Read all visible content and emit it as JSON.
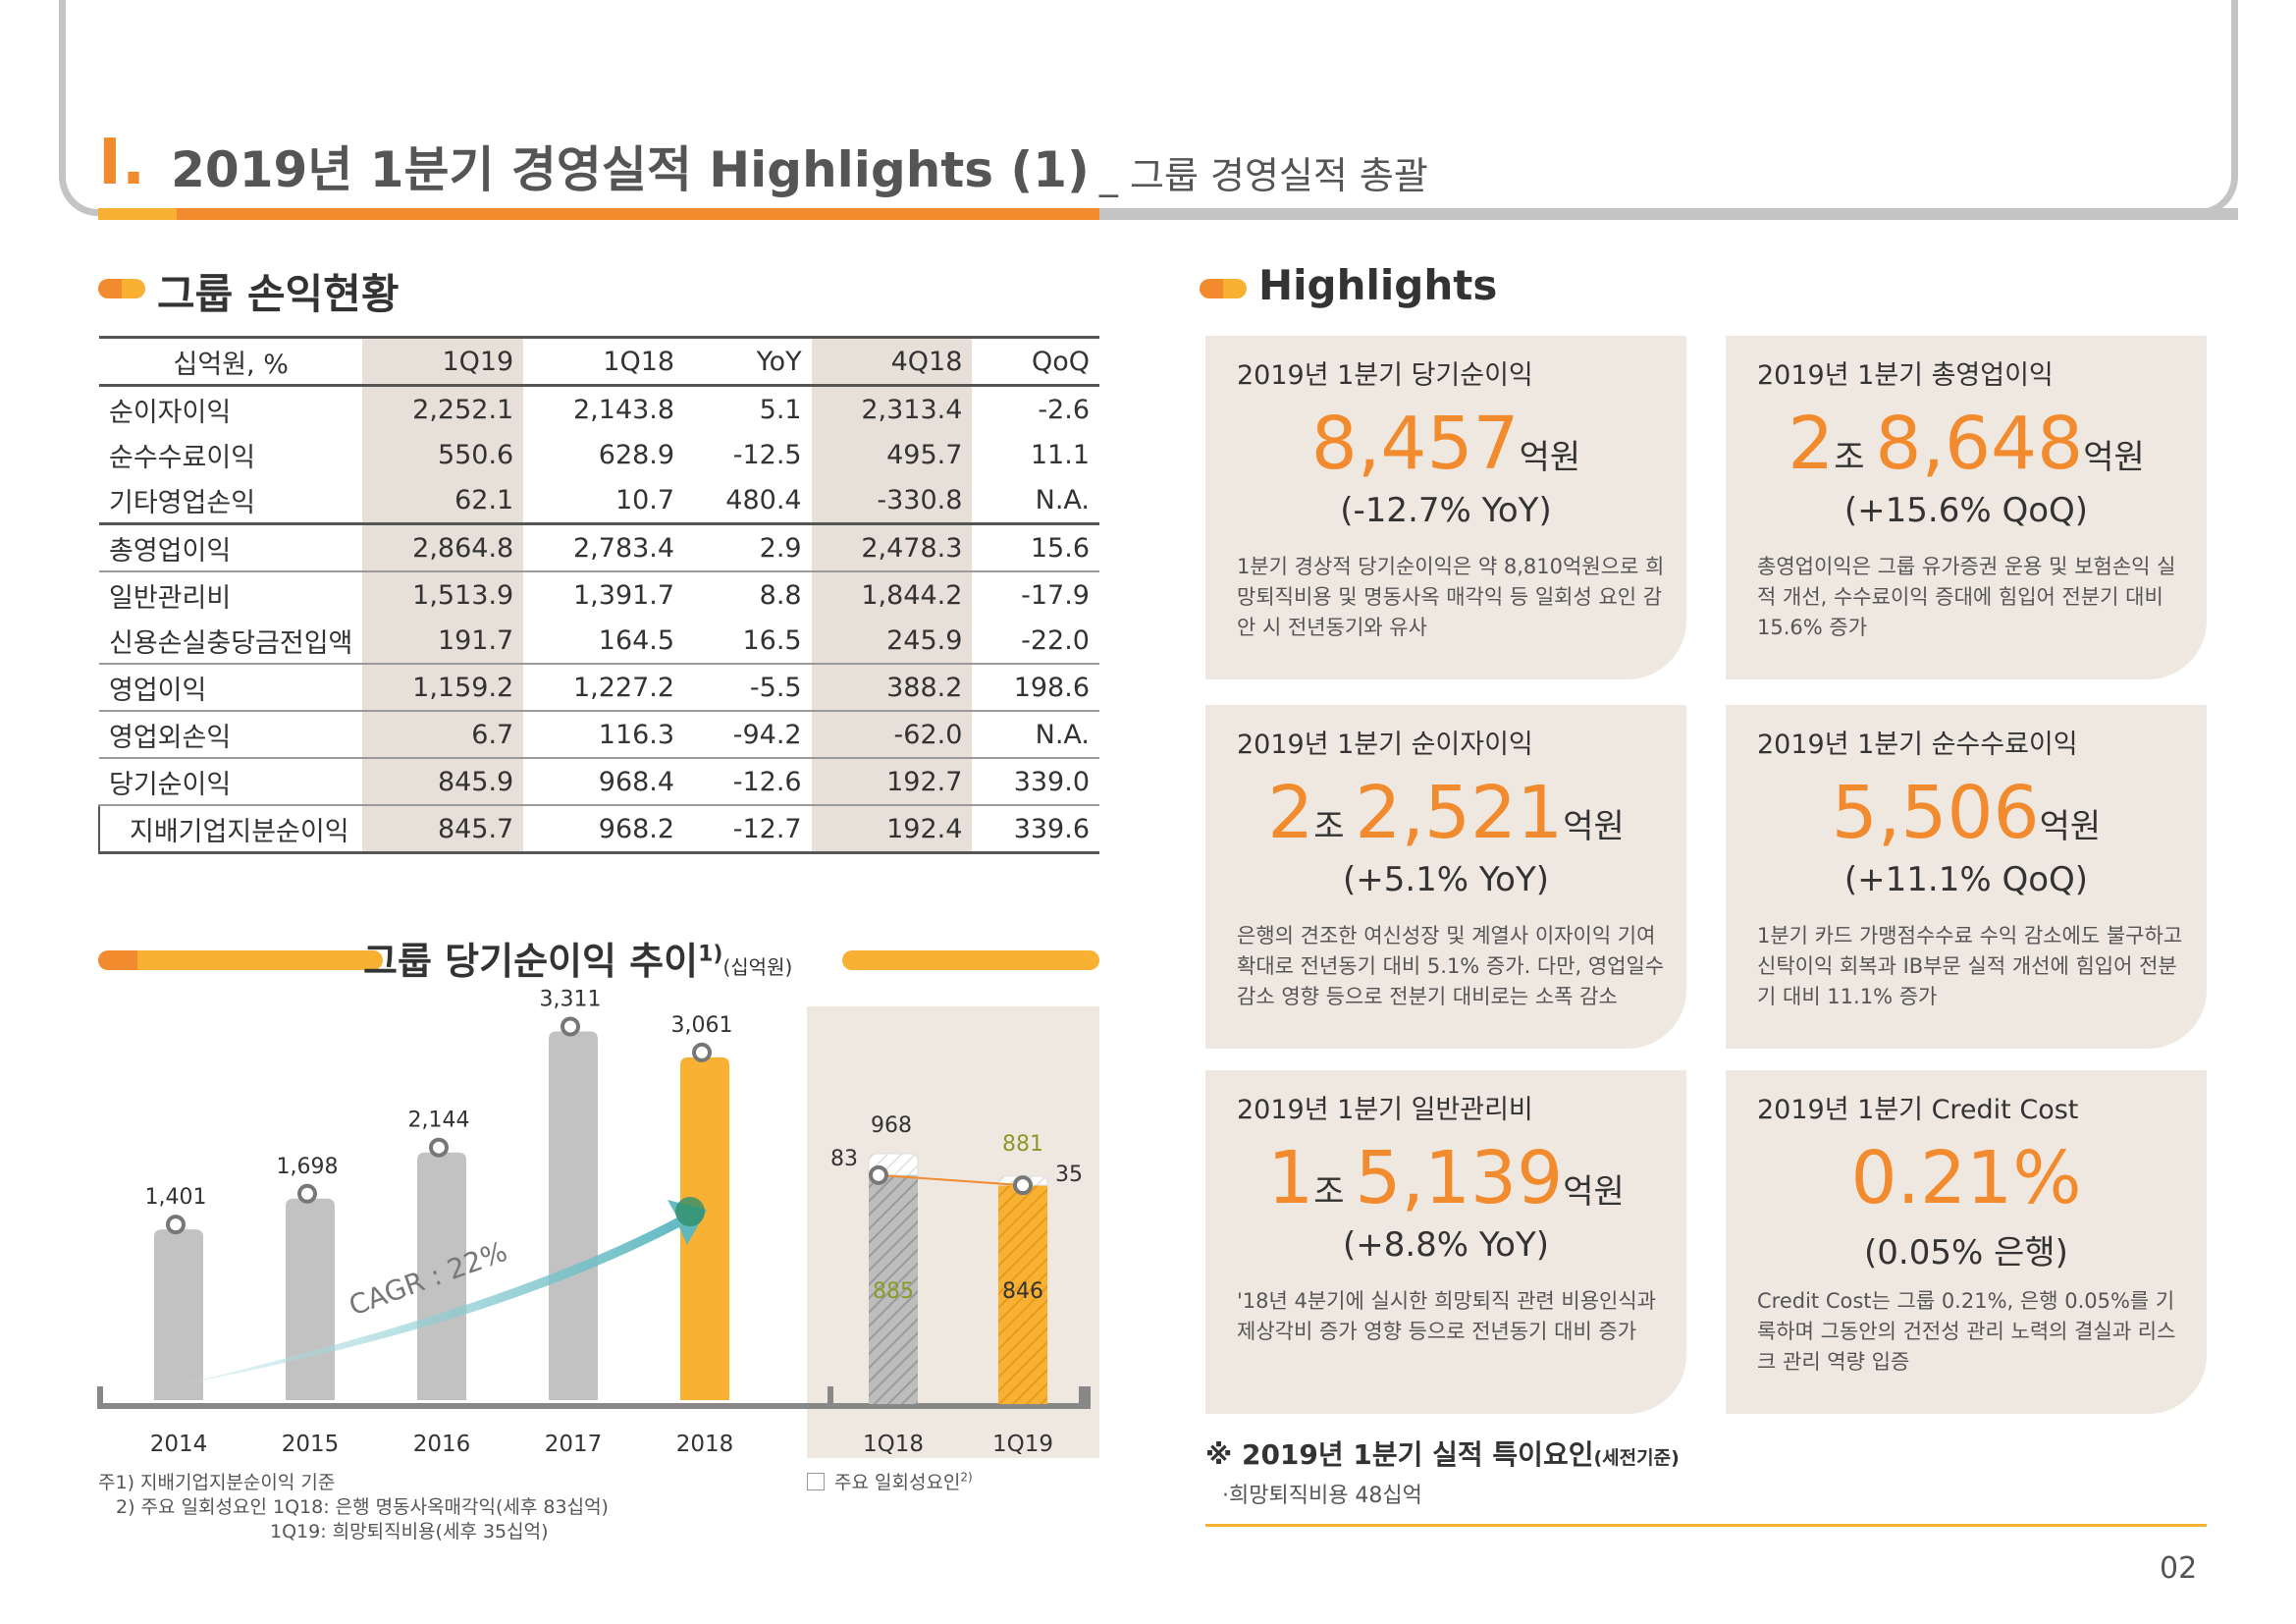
{
  "header": {
    "roman": "I.",
    "title": "2019년 1분기 경영실적 Highlights (1)",
    "subtitle": "_ 그룹 경영실적 총괄"
  },
  "left_section": {
    "title": "그룹 손익현황",
    "table": {
      "columns": [
        "십억원, %",
        "1Q19",
        "1Q18",
        "YoY",
        "4Q18",
        "QoQ"
      ],
      "rows": [
        {
          "label": "순이자이익",
          "values": [
            "2,252.1",
            "2,143.8",
            "5.1",
            "2,313.4",
            "-2.6"
          ]
        },
        {
          "label": "순수수료이익",
          "values": [
            "550.6",
            "628.9",
            "-12.5",
            "495.7",
            "11.1"
          ]
        },
        {
          "label": "기타영업손익",
          "values": [
            "62.1",
            "10.7",
            "480.4",
            "-330.8",
            "N.A."
          ]
        },
        {
          "label": "총영업이익",
          "values": [
            "2,864.8",
            "2,783.4",
            "2.9",
            "2,478.3",
            "15.6"
          ]
        },
        {
          "label": "일반관리비",
          "values": [
            "1,513.9",
            "1,391.7",
            "8.8",
            "1,844.2",
            "-17.9"
          ]
        },
        {
          "label": "신용손실충당금전입액",
          "values": [
            "191.7",
            "164.5",
            "16.5",
            "245.9",
            "-22.0"
          ]
        },
        {
          "label": "영업이익",
          "values": [
            "1,159.2",
            "1,227.2",
            "-5.5",
            "388.2",
            "198.6"
          ]
        },
        {
          "label": "영업외손익",
          "values": [
            "6.7",
            "116.3",
            "-94.2",
            "-62.0",
            "N.A."
          ]
        },
        {
          "label": "당기순이익",
          "values": [
            "845.9",
            "968.4",
            "-12.6",
            "192.7",
            "339.0"
          ]
        },
        {
          "label": "지배기업지분순이익",
          "values": [
            "845.7",
            "968.2",
            "-12.7",
            "192.4",
            "339.6"
          ]
        }
      ]
    }
  },
  "chart_section": {
    "title": "그룹 당기순이익 추이",
    "title_sup": "1)",
    "unit": "(십억원)"
  },
  "chart_data": [
    {
      "type": "bar",
      "categories": [
        "2014",
        "2015",
        "2016",
        "2017",
        "2018"
      ],
      "values": [
        1401,
        1698,
        2144,
        3311,
        3061
      ],
      "value_labels": [
        "1,401",
        "1,698",
        "2,144",
        "3,311",
        "3,061"
      ],
      "annotation": "CAGR : 22%",
      "ylim": [
        0,
        3600
      ],
      "colors": {
        "bar": "#c2c2c2",
        "highlight": "#f8b133",
        "arrow": "#7fc9cf"
      }
    },
    {
      "type": "bar",
      "categories": [
        "1Q18",
        "1Q19"
      ],
      "series": [
        {
          "name": "base",
          "values": [
            885,
            846
          ]
        },
        {
          "name": "주요 일회성요인",
          "values": [
            83,
            35
          ]
        }
      ],
      "totals": [
        968,
        881
      ],
      "ylim": [
        0,
        1100
      ],
      "colors": {
        "1Q18": "#c2c2c2",
        "1Q19": "#f8b133",
        "base_label_1Q18": "#8a9a2a",
        "base_label_1Q19": "#333333",
        "total_1Q19": "#8a9a2a"
      },
      "legend": "주요 일회성요인",
      "legend_sup": "2)"
    }
  ],
  "footnotes": [
    "주1) 지배기업지분순이익 기준",
    "2) 주요 일회성요인 1Q18: 은행 명동사옥매각익(세후 83십억)",
    "1Q19: 희망퇴직비용(세후 35십억)"
  ],
  "highlights": {
    "title": "Highlights",
    "cards": [
      {
        "title": "2019년 1분기 당기순이익",
        "big": [
          {
            "n": "8,457"
          },
          {
            "s": "억원"
          }
        ],
        "change": "(-12.7% YoY)",
        "desc": "1분기 경상적 당기순이익은 약 8,810억원으로 희망퇴직비용 및 명동사옥 매각익 등 일회성 요인 감안 시 전년동기와 유사"
      },
      {
        "title": "2019년 1분기 총영업이익",
        "big": [
          {
            "n": "2"
          },
          {
            "s": "조 "
          },
          {
            "n": "8,648"
          },
          {
            "s": "억원"
          }
        ],
        "change": "(+15.6% QoQ)",
        "desc": "총영업이익은 그룹 유가증권 운용 및 보험손익 실적 개선, 수수료이익 증대에 힘입어 전분기 대비 15.6% 증가"
      },
      {
        "title": "2019년 1분기 순이자이익",
        "big": [
          {
            "n": "2"
          },
          {
            "s": "조 "
          },
          {
            "n": "2,521"
          },
          {
            "s": "억원"
          }
        ],
        "change": "(+5.1% YoY)",
        "desc": "은행의 견조한 여신성장 및 계열사 이자이익 기여 확대로 전년동기 대비 5.1% 증가. 다만, 영업일수 감소 영향 등으로 전분기 대비로는 소폭 감소"
      },
      {
        "title": "2019년 1분기 순수수료이익",
        "big": [
          {
            "n": "5,506"
          },
          {
            "s": "억원"
          }
        ],
        "change": "(+11.1% QoQ)",
        "desc": "1분기 카드 가맹점수수료 수익 감소에도 불구하고 신탁이익 회복과 IB부문 실적 개선에 힘입어 전분기 대비 11.1% 증가"
      },
      {
        "title": "2019년 1분기 일반관리비",
        "big": [
          {
            "n": "1"
          },
          {
            "s": "조 "
          },
          {
            "n": "5,139"
          },
          {
            "s": "억원"
          }
        ],
        "change": "(+8.8% YoY)",
        "desc": "'18년 4분기에 실시한 희망퇴직 관련 비용인식과 제상각비 증가 영향 등으로 전년동기 대비 증가"
      },
      {
        "title": "2019년 1분기 Credit Cost",
        "big": [
          {
            "n": "0.21%"
          }
        ],
        "change": "(0.05% 은행)",
        "desc": "Credit Cost는 그룹 0.21%, 은행 0.05%를 기록하며 그동안의 건전성 관리 노력의 결실과 리스크 관리 역량 입증"
      }
    ]
  },
  "special": {
    "title": "※ 2019년 1분기 실적 특이요인",
    "title_small": "(세전기준)",
    "item": "·희망퇴직비용 48십억"
  },
  "page_number": "02"
}
